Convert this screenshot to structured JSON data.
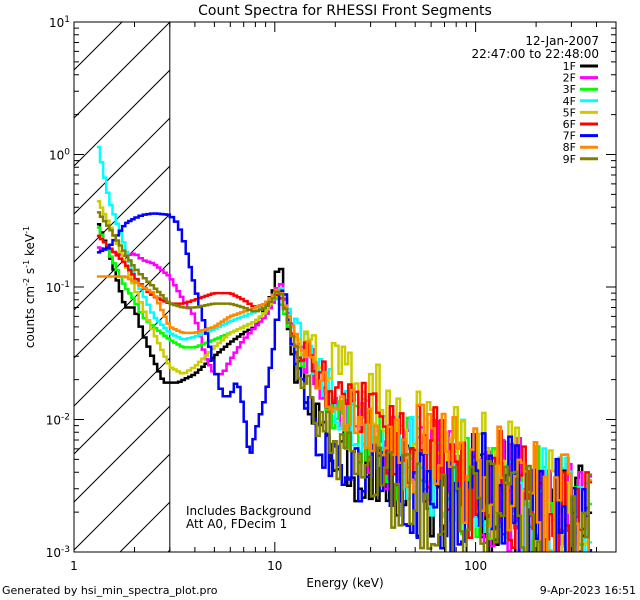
{
  "chart_data": {
    "type": "line",
    "title": "Count Spectra for RHESSI Front Segments",
    "xlabel": "Energy (keV)",
    "ylabel_parts": [
      "counts cm",
      "-2",
      " s",
      "-1",
      " keV",
      "-1"
    ],
    "xscale": "log",
    "yscale": "log",
    "xlim": [
      1,
      500
    ],
    "ylim": [
      0.001,
      10
    ],
    "x_ticks": [
      {
        "v": 1,
        "label": "1"
      },
      {
        "v": 10,
        "label": "10"
      },
      {
        "v": 100,
        "label": "100"
      }
    ],
    "y_ticks": [
      {
        "v": 0.001,
        "base": "10",
        "exp": "-3"
      },
      {
        "v": 0.01,
        "base": "10",
        "exp": "-2"
      },
      {
        "v": 0.1,
        "base": "10",
        "exp": "-1"
      },
      {
        "v": 1,
        "base": "10",
        "exp": "0"
      },
      {
        "v": 10,
        "base": "10",
        "exp": "1"
      }
    ],
    "date": "12-Jan-2007",
    "time_range": "22:47:00 to 22:48:00",
    "annotations": [
      "Includes Background",
      "Att A0, FDecim 1"
    ],
    "excluded_region": [
      1,
      3
    ],
    "series": [
      {
        "name": "1F",
        "color": "#000000",
        "points": [
          [
            1.3,
            0.32
          ],
          [
            1.5,
            0.18
          ],
          [
            1.8,
            0.07
          ],
          [
            2.0,
            0.07
          ],
          [
            2.2,
            0.045
          ],
          [
            2.5,
            0.028
          ],
          [
            2.8,
            0.019
          ],
          [
            3.3,
            0.019
          ],
          [
            4.0,
            0.022
          ],
          [
            5.0,
            0.03
          ],
          [
            6.0,
            0.038
          ],
          [
            7.0,
            0.045
          ],
          [
            8.0,
            0.05
          ],
          [
            9.0,
            0.07
          ],
          [
            10.0,
            0.1
          ],
          [
            10.5,
            0.17
          ],
          [
            11.0,
            0.11
          ],
          [
            11.5,
            0.06
          ],
          [
            12.5,
            0.025
          ],
          [
            14.0,
            0.02
          ],
          [
            16.0,
            0.012
          ],
          [
            18.0,
            0.006
          ],
          [
            22.0,
            0.005
          ],
          [
            26.0,
            0.004
          ],
          [
            32.0,
            0.0035
          ],
          [
            40.0,
            0.003
          ],
          [
            55.0,
            0.0028
          ],
          [
            75.0,
            0.0025
          ],
          [
            100.0,
            0.0035
          ],
          [
            140.0,
            0.0022
          ],
          [
            200.0,
            0.0018
          ],
          [
            280.0,
            0.0015
          ],
          [
            380.0,
            0.0012
          ]
        ]
      },
      {
        "name": "2F",
        "color": "#ff00ff",
        "points": [
          [
            1.3,
            0.2
          ],
          [
            1.5,
            0.19
          ],
          [
            1.8,
            0.17
          ],
          [
            2.0,
            0.18
          ],
          [
            2.2,
            0.16
          ],
          [
            2.5,
            0.15
          ],
          [
            3.0,
            0.12
          ],
          [
            3.5,
            0.08
          ],
          [
            4.0,
            0.06
          ],
          [
            4.5,
            0.03
          ],
          [
            5.0,
            0.022
          ],
          [
            5.5,
            0.022
          ],
          [
            6.0,
            0.028
          ],
          [
            7.0,
            0.04
          ],
          [
            8.0,
            0.05
          ],
          [
            9.0,
            0.06
          ],
          [
            10.0,
            0.08
          ],
          [
            10.5,
            0.12
          ],
          [
            11.5,
            0.07
          ],
          [
            13.0,
            0.04
          ],
          [
            15.0,
            0.025
          ],
          [
            18.0,
            0.015
          ],
          [
            22.0,
            0.01
          ],
          [
            27.0,
            0.008
          ],
          [
            35.0,
            0.006
          ],
          [
            45.0,
            0.005
          ],
          [
            60.0,
            0.004
          ],
          [
            80.0,
            0.0035
          ],
          [
            110.0,
            0.003
          ],
          [
            150.0,
            0.0025
          ],
          [
            210.0,
            0.002
          ],
          [
            300.0,
            0.0017
          ],
          [
            380.0,
            0.0015
          ]
        ]
      },
      {
        "name": "3F",
        "color": "#00ff00",
        "points": [
          [
            1.3,
            0.3
          ],
          [
            1.5,
            0.18
          ],
          [
            1.8,
            0.1
          ],
          [
            2.0,
            0.08
          ],
          [
            2.2,
            0.06
          ],
          [
            2.5,
            0.05
          ],
          [
            3.0,
            0.04
          ],
          [
            3.5,
            0.035
          ],
          [
            4.0,
            0.035
          ],
          [
            5.0,
            0.04
          ],
          [
            6.0,
            0.045
          ],
          [
            7.0,
            0.05
          ],
          [
            8.0,
            0.055
          ],
          [
            9.0,
            0.065
          ],
          [
            10.0,
            0.085
          ],
          [
            11.0,
            0.07
          ],
          [
            12.0,
            0.045
          ],
          [
            14.0,
            0.03
          ],
          [
            16.0,
            0.02
          ],
          [
            20.0,
            0.012
          ],
          [
            25.0,
            0.009
          ],
          [
            32.0,
            0.007
          ],
          [
            42.0,
            0.005
          ],
          [
            55.0,
            0.004
          ],
          [
            75.0,
            0.0033
          ],
          [
            100.0,
            0.0028
          ],
          [
            140.0,
            0.0022
          ],
          [
            200.0,
            0.0018
          ],
          [
            280.0,
            0.0015
          ],
          [
            380.0,
            0.0013
          ]
        ]
      },
      {
        "name": "4F",
        "color": "#00ffff",
        "points": [
          [
            1.3,
            1.3
          ],
          [
            1.5,
            0.45
          ],
          [
            1.8,
            0.2
          ],
          [
            2.0,
            0.12
          ],
          [
            2.2,
            0.09
          ],
          [
            2.5,
            0.06
          ],
          [
            3.0,
            0.045
          ],
          [
            3.5,
            0.04
          ],
          [
            4.0,
            0.042
          ],
          [
            5.0,
            0.048
          ],
          [
            6.0,
            0.055
          ],
          [
            7.0,
            0.06
          ],
          [
            8.0,
            0.065
          ],
          [
            9.0,
            0.075
          ],
          [
            10.0,
            0.09
          ],
          [
            11.0,
            0.1
          ],
          [
            12.0,
            0.06
          ],
          [
            14.0,
            0.035
          ],
          [
            16.0,
            0.022
          ],
          [
            20.0,
            0.014
          ],
          [
            25.0,
            0.01
          ],
          [
            32.0,
            0.008
          ],
          [
            42.0,
            0.0058
          ],
          [
            55.0,
            0.0048
          ],
          [
            75.0,
            0.0038
          ],
          [
            100.0,
            0.0032
          ],
          [
            140.0,
            0.0026
          ],
          [
            200.0,
            0.0021
          ],
          [
            280.0,
            0.0017
          ],
          [
            380.0,
            0.0014
          ]
        ]
      },
      {
        "name": "5F",
        "color": "#cccc00",
        "points": [
          [
            1.3,
            0.47
          ],
          [
            1.5,
            0.3
          ],
          [
            1.8,
            0.15
          ],
          [
            2.0,
            0.1
          ],
          [
            2.2,
            0.07
          ],
          [
            2.5,
            0.045
          ],
          [
            3.0,
            0.025
          ],
          [
            3.5,
            0.022
          ],
          [
            4.0,
            0.025
          ],
          [
            5.0,
            0.035
          ],
          [
            6.0,
            0.045
          ],
          [
            7.0,
            0.05
          ],
          [
            8.0,
            0.055
          ],
          [
            9.0,
            0.065
          ],
          [
            10.0,
            0.085
          ],
          [
            11.0,
            0.08
          ],
          [
            12.0,
            0.05
          ],
          [
            14.0,
            0.035
          ],
          [
            16.0,
            0.03
          ],
          [
            20.0,
            0.025
          ],
          [
            25.0,
            0.02
          ],
          [
            32.0,
            0.015
          ],
          [
            42.0,
            0.01
          ],
          [
            55.0,
            0.007
          ],
          [
            75.0,
            0.005
          ],
          [
            100.0,
            0.004
          ],
          [
            140.0,
            0.003
          ],
          [
            200.0,
            0.0025
          ],
          [
            280.0,
            0.002
          ],
          [
            380.0,
            0.0016
          ]
        ]
      },
      {
        "name": "6F",
        "color": "#ff0000",
        "points": [
          [
            1.3,
            0.25
          ],
          [
            1.5,
            0.2
          ],
          [
            1.8,
            0.15
          ],
          [
            2.0,
            0.12
          ],
          [
            2.2,
            0.1
          ],
          [
            2.5,
            0.085
          ],
          [
            3.0,
            0.075
          ],
          [
            3.5,
            0.075
          ],
          [
            4.0,
            0.08
          ],
          [
            5.0,
            0.09
          ],
          [
            6.0,
            0.09
          ],
          [
            7.0,
            0.08
          ],
          [
            8.0,
            0.07
          ],
          [
            9.0,
            0.075
          ],
          [
            10.0,
            0.09
          ],
          [
            11.0,
            0.08
          ],
          [
            12.0,
            0.05
          ],
          [
            14.0,
            0.03
          ],
          [
            16.0,
            0.022
          ],
          [
            20.0,
            0.015
          ],
          [
            25.0,
            0.012
          ],
          [
            32.0,
            0.009
          ],
          [
            42.0,
            0.007
          ],
          [
            55.0,
            0.0055
          ],
          [
            75.0,
            0.0045
          ],
          [
            100.0,
            0.0036
          ],
          [
            140.0,
            0.0028
          ],
          [
            200.0,
            0.0022
          ],
          [
            280.0,
            0.0017
          ],
          [
            380.0,
            0.0014
          ]
        ]
      },
      {
        "name": "7F",
        "color": "#0000ff",
        "points": [
          [
            1.3,
            0.18
          ],
          [
            1.5,
            0.2
          ],
          [
            1.8,
            0.3
          ],
          [
            2.0,
            0.33
          ],
          [
            2.2,
            0.35
          ],
          [
            2.5,
            0.36
          ],
          [
            3.0,
            0.35
          ],
          [
            3.3,
            0.3
          ],
          [
            3.6,
            0.2
          ],
          [
            4.0,
            0.1
          ],
          [
            4.5,
            0.05
          ],
          [
            5.0,
            0.025
          ],
          [
            5.5,
            0.015
          ],
          [
            6.0,
            0.015
          ],
          [
            6.5,
            0.02
          ],
          [
            7.0,
            0.012
          ],
          [
            7.5,
            0.005
          ],
          [
            8.0,
            0.008
          ],
          [
            9.0,
            0.015
          ],
          [
            10.0,
            0.04
          ],
          [
            10.5,
            0.08
          ],
          [
            11.0,
            0.11
          ],
          [
            11.5,
            0.07
          ],
          [
            12.5,
            0.03
          ],
          [
            14.0,
            0.015
          ],
          [
            16.0,
            0.008
          ],
          [
            20.0,
            0.005
          ],
          [
            25.0,
            0.004
          ],
          [
            32.0,
            0.0033
          ],
          [
            42.0,
            0.0028
          ],
          [
            55.0,
            0.0024
          ],
          [
            75.0,
            0.0021
          ],
          [
            100.0,
            0.003
          ],
          [
            140.0,
            0.0022
          ],
          [
            200.0,
            0.0018
          ],
          [
            280.0,
            0.0014
          ],
          [
            380.0,
            0.0012
          ]
        ]
      },
      {
        "name": "8F",
        "color": "#ff8800",
        "points": [
          [
            1.3,
            0.12
          ],
          [
            1.5,
            0.12
          ],
          [
            1.8,
            0.12
          ],
          [
            2.0,
            0.11
          ],
          [
            2.2,
            0.1
          ],
          [
            2.5,
            0.09
          ],
          [
            3.0,
            0.05
          ],
          [
            3.5,
            0.045
          ],
          [
            4.0,
            0.045
          ],
          [
            5.0,
            0.05
          ],
          [
            6.0,
            0.06
          ],
          [
            7.0,
            0.065
          ],
          [
            8.0,
            0.07
          ],
          [
            9.0,
            0.075
          ],
          [
            10.0,
            0.09
          ],
          [
            10.5,
            0.1
          ],
          [
            11.5,
            0.065
          ],
          [
            13.0,
            0.04
          ],
          [
            15.0,
            0.028
          ],
          [
            18.0,
            0.02
          ],
          [
            22.0,
            0.014
          ],
          [
            27.0,
            0.011
          ],
          [
            35.0,
            0.008
          ],
          [
            45.0,
            0.0065
          ],
          [
            60.0,
            0.005
          ],
          [
            80.0,
            0.0042
          ],
          [
            110.0,
            0.0035
          ],
          [
            150.0,
            0.0028
          ],
          [
            210.0,
            0.0022
          ],
          [
            300.0,
            0.0018
          ],
          [
            380.0,
            0.0015
          ]
        ]
      },
      {
        "name": "9F",
        "color": "#808000",
        "points": [
          [
            1.3,
            0.38
          ],
          [
            1.5,
            0.28
          ],
          [
            1.8,
            0.18
          ],
          [
            2.0,
            0.14
          ],
          [
            2.2,
            0.12
          ],
          [
            2.5,
            0.1
          ],
          [
            3.0,
            0.075
          ],
          [
            3.5,
            0.07
          ],
          [
            4.0,
            0.07
          ],
          [
            5.0,
            0.075
          ],
          [
            6.0,
            0.075
          ],
          [
            7.0,
            0.07
          ],
          [
            8.0,
            0.065
          ],
          [
            9.0,
            0.07
          ],
          [
            10.0,
            0.085
          ],
          [
            10.5,
            0.1
          ],
          [
            11.5,
            0.06
          ],
          [
            13.0,
            0.03
          ],
          [
            15.0,
            0.015
          ],
          [
            18.0,
            0.008
          ],
          [
            22.0,
            0.005
          ],
          [
            27.0,
            0.004
          ],
          [
            35.0,
            0.0033
          ],
          [
            45.0,
            0.0028
          ],
          [
            60.0,
            0.0024
          ],
          [
            80.0,
            0.0021
          ],
          [
            110.0,
            0.0019
          ],
          [
            150.0,
            0.0017
          ],
          [
            210.0,
            0.0015
          ],
          [
            300.0,
            0.0013
          ],
          [
            380.0,
            0.0011
          ]
        ]
      }
    ]
  },
  "footer": {
    "generated_by": "Generated by hsi_min_spectra_plot.pro",
    "timestamp": "9-Apr-2023 16:51"
  }
}
